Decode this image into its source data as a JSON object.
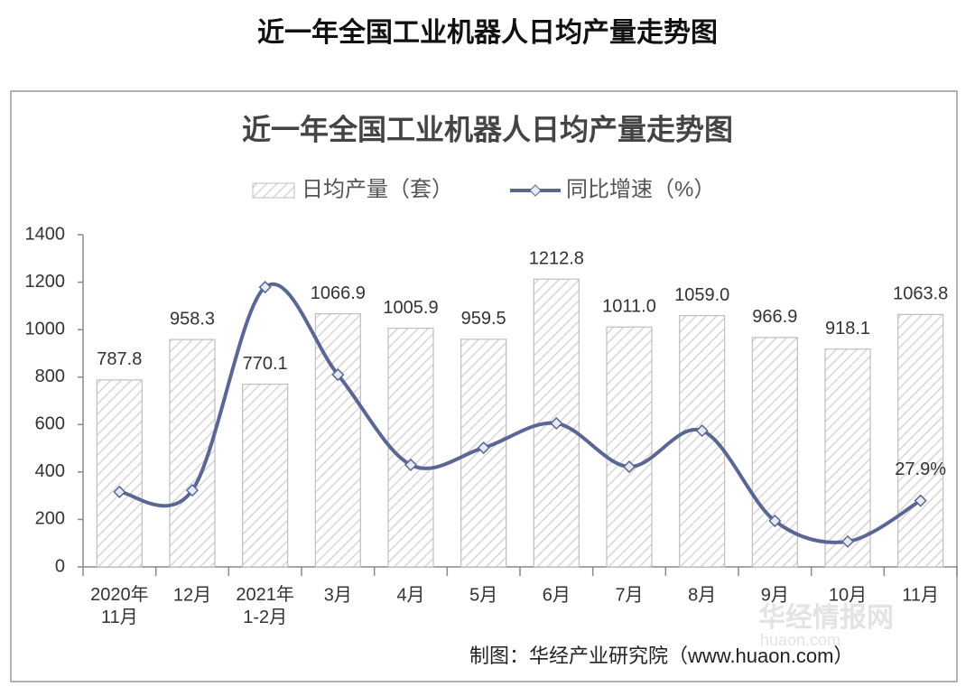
{
  "chart_data": {
    "type": "bar",
    "page_title": "近一年全国工业机器人日均产量走势图",
    "title": "近一年全国工业机器人日均产量走势图",
    "source": "制图：华经产业研究院（www.huaon.com）",
    "watermark": [
      "华经情报网",
      "huaon.com"
    ],
    "categories": [
      "2020年\n11月",
      "12月",
      "2021年\n1-2月",
      "3月",
      "4月",
      "5月",
      "6月",
      "7月",
      "8月",
      "9月",
      "10月",
      "11月"
    ],
    "series": [
      {
        "name": "日均产量（套）",
        "type": "bar",
        "color": "#bfbfbf",
        "values": [
          787.8,
          958.3,
          770.1,
          1066.9,
          1005.9,
          959.5,
          1212.8,
          1011.0,
          1059.0,
          966.9,
          918.1,
          1063.8
        ],
        "value_labels": [
          "787.8",
          "958.3",
          "770.1",
          "1066.9",
          "1005.9",
          "959.5",
          "1212.8",
          "1011.0",
          "1059.0",
          "966.9",
          "918.1",
          "1063.8"
        ]
      },
      {
        "name": "同比增速（%）",
        "type": "line",
        "axis": "y2",
        "color": "#5a6794",
        "values": [
          31.6,
          32.3,
          117.9,
          81.0,
          43.0,
          50.2,
          60.5,
          42.2,
          57.4,
          19.4,
          10.7,
          27.9
        ],
        "value_labels": [
          null,
          null,
          null,
          null,
          null,
          null,
          null,
          null,
          null,
          null,
          null,
          "27.9%"
        ]
      }
    ],
    "ylim": [
      0,
      1400
    ],
    "yticks": [
      0,
      200,
      400,
      600,
      800,
      1000,
      1200,
      1400
    ],
    "y2lim": [
      0,
      140
    ],
    "legend": "top",
    "grid": false
  }
}
